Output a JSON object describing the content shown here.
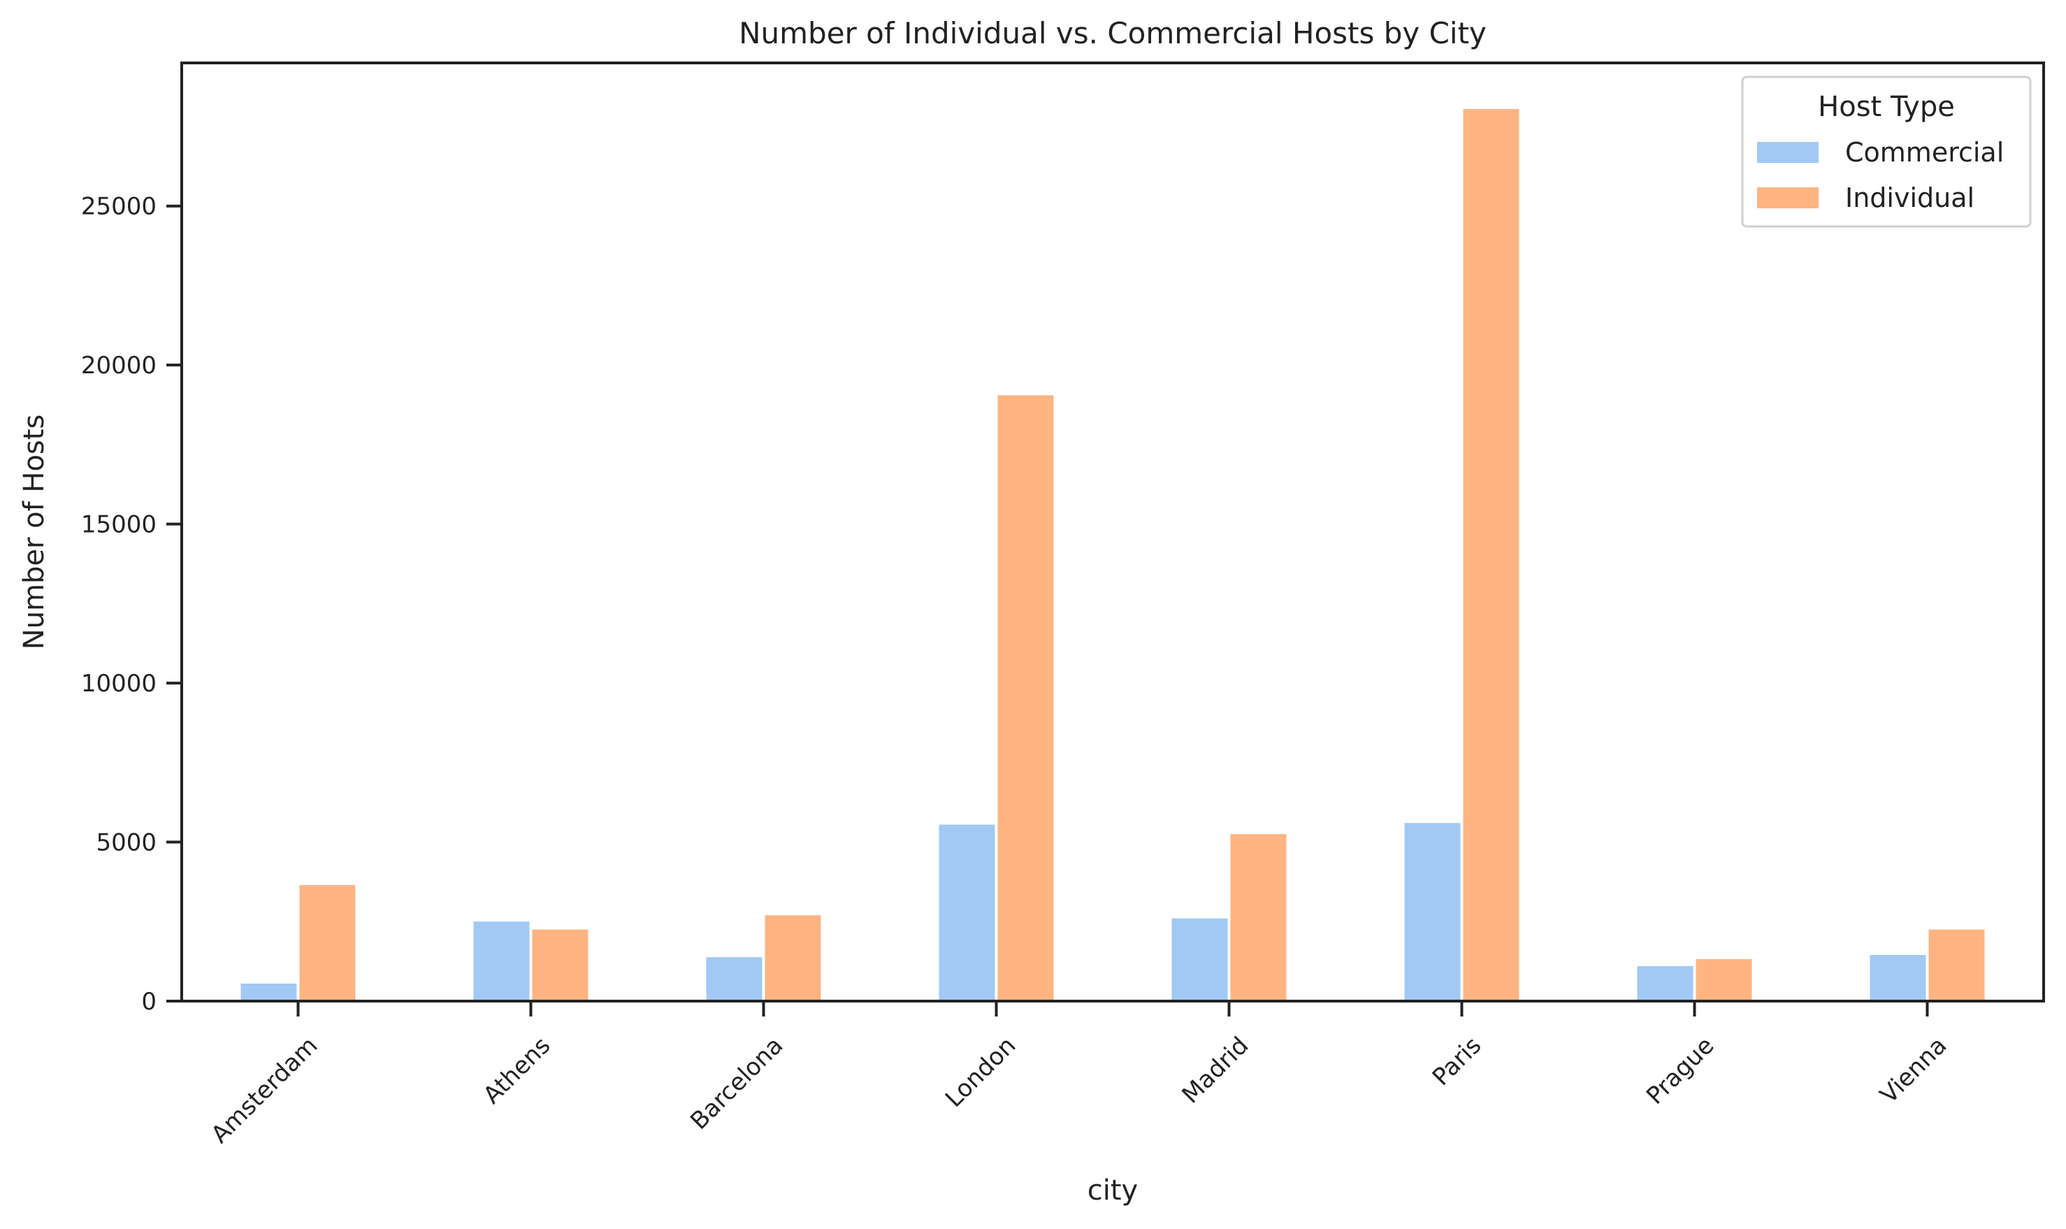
{
  "chart_data": {
    "type": "bar",
    "title": "Number of Individual vs. Commercial Hosts by City",
    "xlabel": "city",
    "ylabel": "Number of Hosts",
    "categories": [
      "Amsterdam",
      "Athens",
      "Barcelona",
      "London",
      "Madrid",
      "Paris",
      "Prague",
      "Vienna"
    ],
    "series": [
      {
        "name": "Commercial",
        "color": "#a1c9f4",
        "values": [
          550,
          2500,
          1380,
          5550,
          2600,
          5600,
          1100,
          1450
        ]
      },
      {
        "name": "Individual",
        "color": "#ffb482",
        "values": [
          3650,
          2250,
          2700,
          19050,
          5250,
          28050,
          1320,
          2250
        ]
      }
    ],
    "ylim": [
      0,
      29500
    ],
    "yticks": [
      0,
      5000,
      10000,
      15000,
      20000,
      25000
    ],
    "legend": {
      "title": "Host Type",
      "placement": "top-right"
    },
    "grid": false
  }
}
